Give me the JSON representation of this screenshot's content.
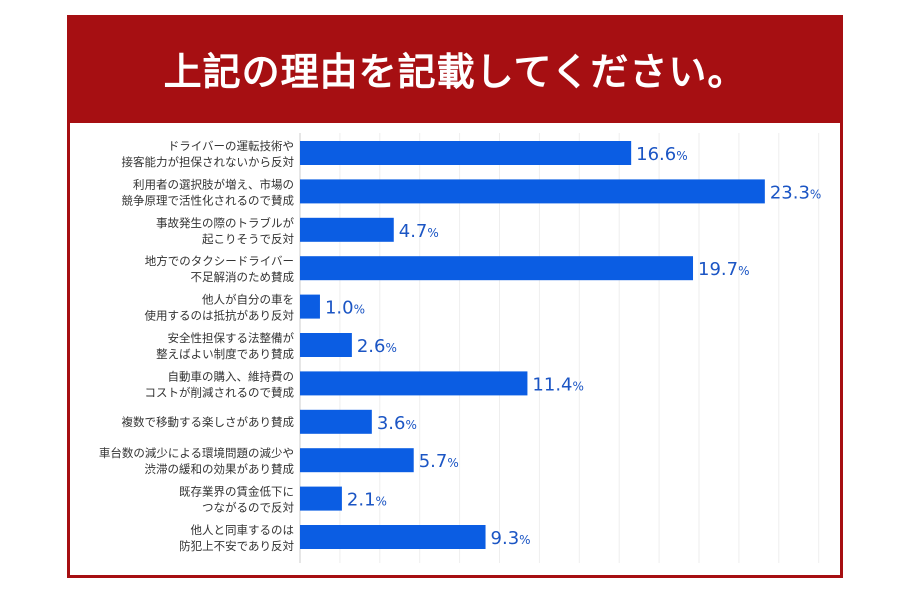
{
  "title": "上記の理由を記載してください。",
  "colors": {
    "header": "#a60f12",
    "bar": "#0b5de3",
    "value_label": "#1b55c4"
  },
  "chart_data": {
    "type": "bar",
    "orientation": "horizontal",
    "title": "上記の理由を記載してください。",
    "categories": [
      [
        "ドライバーの運転技術や",
        "接客能力が担保されないから反対"
      ],
      [
        "利用者の選択肢が増え、市場の",
        "競争原理で活性化されるので賛成"
      ],
      [
        "事故発生の際のトラブルが",
        "起こりそうで反対"
      ],
      [
        "地方でのタクシードライバー",
        "不足解消のため賛成"
      ],
      [
        "他人が自分の車を",
        "使用するのは抵抗があり反対"
      ],
      [
        "安全性担保する法整備が",
        "整えばよい制度であり賛成"
      ],
      [
        "自動車の購入、維持費の",
        "コストが削減されるので賛成"
      ],
      [
        "複数で移動する楽しさがあり賛成"
      ],
      [
        "車台数の減少による環境問題の減少や",
        "渋滞の緩和の効果があり賛成"
      ],
      [
        "既存業界の賃金低下に",
        "つながるので反対"
      ],
      [
        "他人と同車するのは",
        "防犯上不安であり反対"
      ]
    ],
    "values": [
      16.6,
      23.3,
      4.7,
      19.7,
      1.0,
      2.6,
      11.4,
      3.6,
      5.7,
      2.1,
      9.3
    ],
    "value_suffix": "%",
    "xlim": [
      0,
      25
    ],
    "grid": true,
    "legend": "none"
  }
}
